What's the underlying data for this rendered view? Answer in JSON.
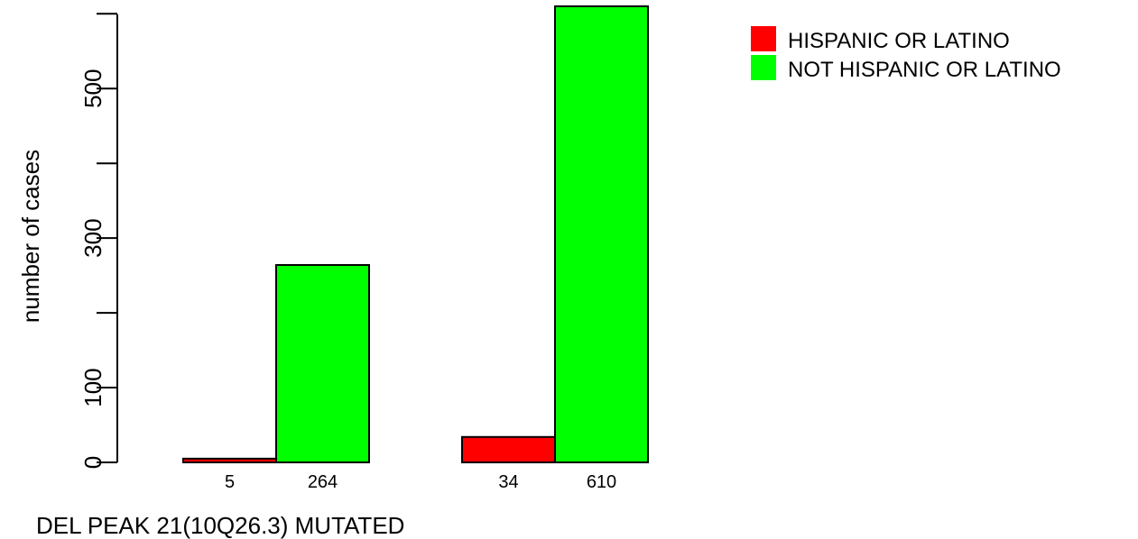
{
  "chart_data": {
    "type": "bar",
    "xlabel": "DEL PEAK 21(10Q26.3) MUTATED",
    "ylabel": "number of cases",
    "ylim": [
      0,
      610
    ],
    "yticks": [
      0,
      100,
      300,
      500
    ],
    "grid": false,
    "legend_position": "top-right",
    "groups": [
      {
        "bars": [
          {
            "series": "HISPANIC OR LATINO",
            "value": 5,
            "label": "5"
          },
          {
            "series": "NOT HISPANIC OR LATINO",
            "value": 264,
            "label": "264"
          }
        ]
      },
      {
        "bars": [
          {
            "series": "HISPANIC OR LATINO",
            "value": 34,
            "label": "34"
          },
          {
            "series": "NOT HISPANIC OR LATINO",
            "value": 610,
            "label": "610"
          }
        ]
      }
    ],
    "series": [
      {
        "name": "HISPANIC OR LATINO",
        "color": "#ff0000"
      },
      {
        "name": "NOT HISPANIC OR LATINO",
        "color": "#00ff00"
      }
    ]
  }
}
